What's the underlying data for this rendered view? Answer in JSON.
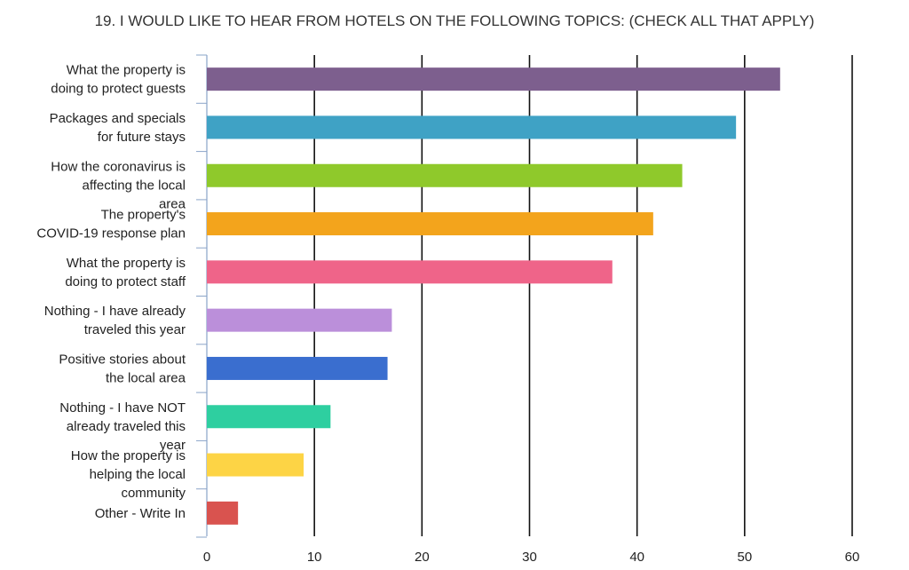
{
  "chart_data": {
    "type": "bar",
    "orientation": "horizontal",
    "title": "19. I WOULD LIKE TO HEAR FROM HOTELS ON THE FOLLOWING TOPICS: (CHECK ALL THAT APPLY)",
    "xlim": [
      0,
      60
    ],
    "xticks": [
      0,
      10,
      20,
      30,
      40,
      50,
      60
    ],
    "grid": "vertical",
    "categories": [
      [
        "What the property is",
        "doing to protect guests"
      ],
      [
        "Packages and specials",
        "for future stays"
      ],
      [
        "How the coronavirus is",
        "affecting the local",
        "area"
      ],
      [
        "The property's",
        "COVID-19 response plan"
      ],
      [
        "What the property is",
        "doing to protect staff"
      ],
      [
        "Nothing - I have already",
        "traveled this year"
      ],
      [
        "Positive stories about",
        "the local area"
      ],
      [
        "Nothing - I have NOT",
        "already traveled this",
        "year"
      ],
      [
        "How the property is",
        "helping the local",
        "community"
      ],
      [
        "Other - Write In"
      ]
    ],
    "values": [
      53.3,
      49.2,
      44.2,
      41.5,
      37.7,
      17.2,
      16.8,
      11.5,
      9.0,
      2.9
    ],
    "colors": [
      "#7d5f8e",
      "#3fa2c5",
      "#8fc92b",
      "#f3a41c",
      "#ef6489",
      "#bb8fda",
      "#3a6ecf",
      "#2ecfa0",
      "#fdd445",
      "#d9534f"
    ]
  }
}
